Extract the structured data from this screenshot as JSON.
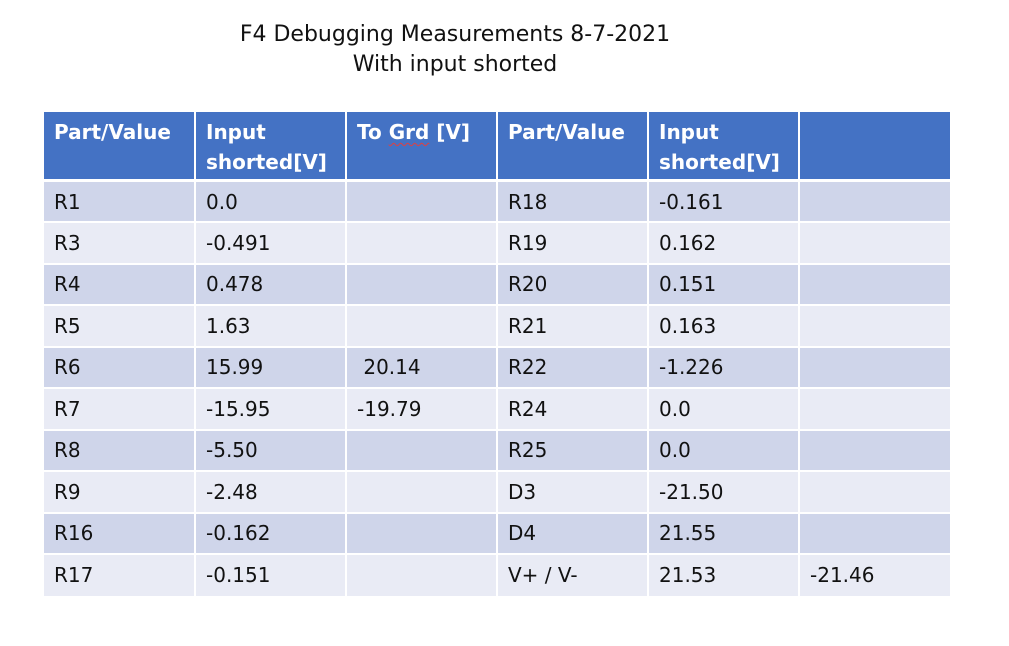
{
  "title": {
    "line1": "F4 Debugging Measurements 8-7-2021",
    "line2": "With input shorted"
  },
  "table": {
    "headers": {
      "part_value_1": "Part/Value",
      "input_1": "Input shorted[V]",
      "to_grd_word1": "To",
      "to_grd_word2": "Grd",
      "to_grd_word3": "[V]",
      "part_value_2": "Part/Value",
      "input_2": "Input shorted[V]",
      "extra": ""
    },
    "rows": [
      {
        "part": "R1",
        "input": "0.0",
        "to_grd": "",
        "part2": "R18",
        "input2": "-0.161",
        "extra": ""
      },
      {
        "part": "R3",
        "input": "-0.491",
        "to_grd": "",
        "part2": "R19",
        "input2": "0.162",
        "extra": ""
      },
      {
        "part": "R4",
        "input": "0.478",
        "to_grd": "",
        "part2": "R20",
        "input2": "0.151",
        "extra": ""
      },
      {
        "part": "R5",
        "input": "1.63",
        "to_grd": "",
        "part2": "R21",
        "input2": "0.163",
        "extra": ""
      },
      {
        "part": "R6",
        "input": "15.99",
        "to_grd": " 20.14",
        "part2": "R22",
        "input2": "-1.226",
        "extra": ""
      },
      {
        "part": "R7",
        "input": "-15.95",
        "to_grd": "-19.79",
        "part2": "R24",
        "input2": "0.0",
        "extra": ""
      },
      {
        "part": "R8",
        "input": "-5.50",
        "to_grd": "",
        "part2": "R25",
        "input2": "0.0",
        "extra": ""
      },
      {
        "part": "R9",
        "input": "-2.48",
        "to_grd": "",
        "part2": "D3",
        "input2": "-21.50",
        "extra": ""
      },
      {
        "part": "R16",
        "input": "-0.162",
        "to_grd": "",
        "part2": "D4",
        "input2": "21.55",
        "extra": ""
      },
      {
        "part": "R17",
        "input": "-0.151",
        "to_grd": "",
        "part2": "V+ / V-",
        "input2": "21.53",
        "extra": "-21.46"
      }
    ]
  },
  "colors": {
    "header_bg": "#4472c4",
    "row_odd": "#cfd5ea",
    "row_even": "#e9ebf5"
  }
}
